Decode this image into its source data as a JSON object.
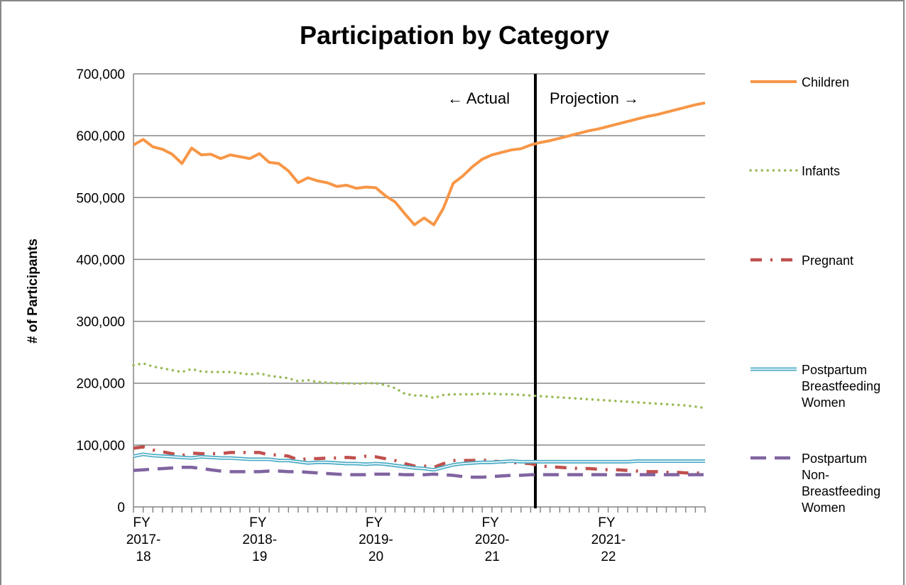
{
  "chart_data": {
    "type": "line",
    "title": "Participation by Category",
    "y_label": "# of Participants",
    "annotations": [
      "← Actual",
      "Projection →"
    ],
    "categories": [
      "FY 2017-18",
      null,
      null,
      null,
      null,
      null,
      null,
      null,
      null,
      null,
      null,
      null,
      "FY 2018-19",
      null,
      null,
      null,
      null,
      null,
      null,
      null,
      null,
      null,
      null,
      null,
      "FY 2019-20",
      null,
      null,
      null,
      null,
      null,
      null,
      null,
      null,
      null,
      null,
      null,
      "FY 2020-21",
      null,
      null,
      null,
      null,
      null,
      null,
      null,
      null,
      null,
      null,
      null,
      "FY 2021-22",
      null,
      null,
      null,
      null,
      null,
      null,
      null,
      null,
      null,
      null,
      null
    ],
    "ylim": [
      0,
      700000
    ],
    "yticks": [
      0,
      {
        "value": 100000,
        "label": "100,000"
      },
      {
        "value": 200000,
        "label": "200,000"
      },
      {
        "value": 300000,
        "label": "300,000"
      },
      {
        "value": 400000,
        "label": "400,000"
      },
      {
        "value": 500000,
        "label": "500,000"
      },
      {
        "value": 600000,
        "label": "600,000"
      },
      {
        "value": 700000,
        "label": "700,000"
      }
    ],
    "grid": true,
    "legend": "right",
    "series": [
      {
        "name": "Children",
        "color": "#f79646",
        "style": "solid",
        "values": [
          585000,
          594000,
          582000,
          578000,
          570000,
          555000,
          580000,
          569000,
          570000,
          563000,
          569000,
          566000,
          563000,
          571000,
          557000,
          555000,
          543000,
          524000,
          532000,
          527000,
          524000,
          518000,
          520000,
          515000,
          517000,
          516000,
          503000,
          493000,
          474000,
          456000,
          467000,
          456000,
          483000,
          523000,
          535000,
          550000,
          562000,
          569000,
          573000,
          577000,
          579000,
          585000,
          589000,
          592000,
          596000,
          600000,
          604000,
          608000,
          611000,
          615000,
          619000,
          623000,
          627000,
          631000,
          634000,
          638000,
          642000,
          646000,
          650000,
          653000
        ]
      },
      {
        "name": "Infants",
        "color": "#9bbb59",
        "style": "dotted",
        "values": [
          229000,
          232000,
          227000,
          224000,
          221000,
          218000,
          223000,
          219000,
          218000,
          218000,
          218000,
          216000,
          214000,
          216000,
          212000,
          210000,
          208000,
          203000,
          205000,
          202000,
          201000,
          200000,
          200000,
          199000,
          200000,
          200000,
          197000,
          192000,
          183000,
          180000,
          180000,
          176000,
          181000,
          182000,
          182000,
          182000,
          183000,
          183000,
          182000,
          182000,
          181000,
          180000,
          179000,
          178000,
          177000,
          176000,
          175000,
          174000,
          173000,
          172000,
          171000,
          170000,
          169000,
          168000,
          167000,
          166000,
          165000,
          164000,
          162000,
          160000
        ]
      },
      {
        "name": "Pregnant",
        "color": "#c0504d",
        "style": "dashdot",
        "values": [
          95000,
          97000,
          92000,
          89000,
          86000,
          83000,
          87000,
          86000,
          86000,
          86000,
          88000,
          88000,
          88000,
          88000,
          84000,
          84000,
          82000,
          76000,
          78000,
          78000,
          79000,
          79000,
          80000,
          79000,
          82000,
          81000,
          78000,
          75000,
          70000,
          66000,
          66000,
          64000,
          70000,
          75000,
          75000,
          75000,
          76000,
          74000,
          73000,
          72000,
          71000,
          70000,
          66000,
          65000,
          64000,
          63000,
          62000,
          62000,
          61000,
          60000,
          60000,
          59000,
          58000,
          57000,
          57000,
          56000,
          56000,
          55000,
          55000,
          54000
        ]
      },
      {
        "name": "Postpartum Breastfeeding Women",
        "color": "#4bacc6",
        "style": "double",
        "values": [
          82000,
          85000,
          83000,
          82000,
          81000,
          80000,
          79000,
          81000,
          80000,
          79000,
          79000,
          78000,
          77000,
          77000,
          77000,
          75000,
          75000,
          73000,
          71000,
          72000,
          72000,
          71000,
          70000,
          70000,
          69000,
          70000,
          69000,
          67000,
          65000,
          63000,
          62000,
          60000,
          64000,
          68000,
          70000,
          71000,
          72000,
          72000,
          73000,
          74000,
          73000,
          73000,
          73000,
          73000,
          73000,
          73000,
          73000,
          73000,
          73000,
          73000,
          73000,
          73000,
          74000,
          74000,
          74000,
          74000,
          74000,
          74000,
          74000,
          74000
        ]
      },
      {
        "name": "Postpartum Non-Breastfeeding Women",
        "color": "#8064a2",
        "style": "dashed",
        "values": [
          59000,
          60000,
          61000,
          62000,
          63000,
          64000,
          64000,
          62000,
          60000,
          58000,
          57000,
          57000,
          57000,
          57000,
          58000,
          58000,
          57000,
          57000,
          56000,
          55000,
          54000,
          53000,
          52000,
          52000,
          52000,
          53000,
          53000,
          53000,
          52000,
          52000,
          52000,
          53000,
          52000,
          51000,
          49000,
          48000,
          48000,
          49000,
          50000,
          51000,
          51000,
          52000,
          52000,
          52000,
          52000,
          52000,
          52000,
          52000,
          52000,
          52000,
          52000,
          52000,
          52000,
          52000,
          52000,
          52000,
          52000,
          52000,
          52000,
          52000
        ]
      }
    ]
  }
}
